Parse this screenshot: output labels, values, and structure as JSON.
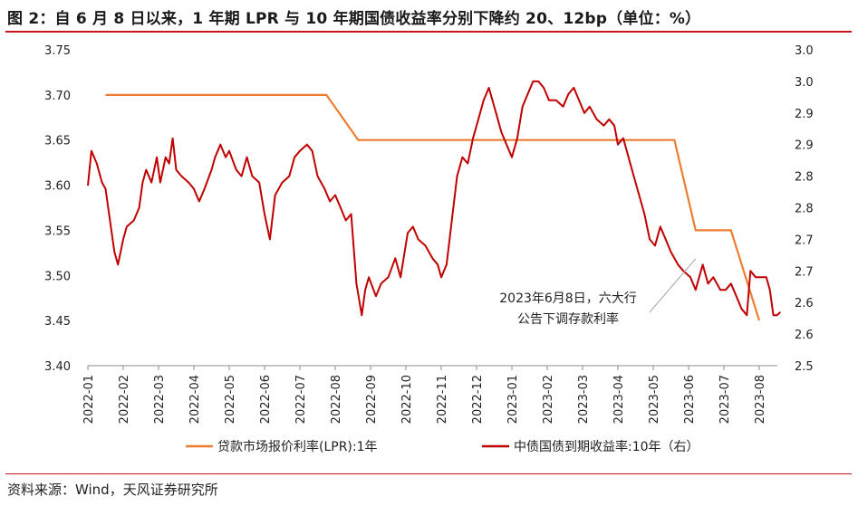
{
  "title": "图 2：自 6 月 8 日以来，1 年期 LPR 与 10 年期国债收益率分别下降约 20、12bp（单位：%）",
  "source": "资料来源：Wind，天风证券研究所",
  "colors": {
    "lpr": "#ed7d31",
    "bond": "#c00000",
    "title_rule": "#c5161d",
    "annotation_line": "#a6a6a6"
  },
  "chart_data": {
    "type": "line",
    "x_categories": [
      "2022-01",
      "2022-02",
      "2022-03",
      "2022-04",
      "2022-05",
      "2022-06",
      "2022-07",
      "2022-08",
      "2022-09",
      "2022-10",
      "2022-11",
      "2022-12",
      "2023-01",
      "2023-02",
      "2023-03",
      "2023-04",
      "2023-05",
      "2023-06",
      "2023-07",
      "2023-08"
    ],
    "y_left": {
      "min": 3.4,
      "max": 3.75,
      "ticks": [
        "3.40",
        "3.45",
        "3.50",
        "3.55",
        "3.60",
        "3.65",
        "3.70",
        "3.75"
      ]
    },
    "y_right": {
      "min": 2.5,
      "max": 3.0,
      "ticks": [
        "2.5",
        "2.6",
        "2.6",
        "2.7",
        "2.7",
        "2.8",
        "2.8",
        "2.9",
        "2.9",
        "3.0",
        "3.0"
      ]
    },
    "legend_placement": "bottom",
    "series": [
      {
        "name": "贷款市场报价利率(LPR):1年",
        "axis": "left",
        "points": [
          [
            0.5,
            3.7
          ],
          [
            6.75,
            3.7
          ],
          [
            7.65,
            3.65
          ],
          [
            16.6,
            3.65
          ],
          [
            17.2,
            3.55
          ],
          [
            18.2,
            3.55
          ],
          [
            19.0,
            3.45
          ]
        ]
      },
      {
        "name": "中债国债到期收益率:10年（右）",
        "axis": "right",
        "points": [
          [
            0.0,
            2.785
          ],
          [
            0.1,
            2.84
          ],
          [
            0.25,
            2.82
          ],
          [
            0.4,
            2.79
          ],
          [
            0.5,
            2.78
          ],
          [
            0.6,
            2.74
          ],
          [
            0.75,
            2.68
          ],
          [
            0.85,
            2.66
          ],
          [
            1.0,
            2.7
          ],
          [
            1.1,
            2.72
          ],
          [
            1.3,
            2.73
          ],
          [
            1.45,
            2.75
          ],
          [
            1.55,
            2.79
          ],
          [
            1.65,
            2.81
          ],
          [
            1.8,
            2.79
          ],
          [
            1.95,
            2.83
          ],
          [
            2.05,
            2.79
          ],
          [
            2.2,
            2.83
          ],
          [
            2.3,
            2.82
          ],
          [
            2.4,
            2.86
          ],
          [
            2.5,
            2.81
          ],
          [
            2.65,
            2.8
          ],
          [
            2.85,
            2.79
          ],
          [
            3.0,
            2.78
          ],
          [
            3.15,
            2.76
          ],
          [
            3.3,
            2.78
          ],
          [
            3.5,
            2.81
          ],
          [
            3.6,
            2.83
          ],
          [
            3.75,
            2.85
          ],
          [
            3.9,
            2.83
          ],
          [
            4.0,
            2.84
          ],
          [
            4.2,
            2.81
          ],
          [
            4.35,
            2.8
          ],
          [
            4.5,
            2.83
          ],
          [
            4.65,
            2.8
          ],
          [
            4.85,
            2.79
          ],
          [
            5.0,
            2.74
          ],
          [
            5.15,
            2.7
          ],
          [
            5.3,
            2.77
          ],
          [
            5.5,
            2.79
          ],
          [
            5.7,
            2.8
          ],
          [
            5.85,
            2.83
          ],
          [
            6.0,
            2.84
          ],
          [
            6.2,
            2.85
          ],
          [
            6.35,
            2.84
          ],
          [
            6.5,
            2.8
          ],
          [
            6.7,
            2.78
          ],
          [
            6.85,
            2.76
          ],
          [
            7.0,
            2.77
          ],
          [
            7.15,
            2.75
          ],
          [
            7.3,
            2.73
          ],
          [
            7.45,
            2.74
          ],
          [
            7.6,
            2.63
          ],
          [
            7.75,
            2.58
          ],
          [
            7.85,
            2.62
          ],
          [
            7.95,
            2.64
          ],
          [
            8.15,
            2.61
          ],
          [
            8.3,
            2.63
          ],
          [
            8.5,
            2.64
          ],
          [
            8.7,
            2.67
          ],
          [
            8.85,
            2.64
          ],
          [
            9.05,
            2.71
          ],
          [
            9.2,
            2.72
          ],
          [
            9.35,
            2.7
          ],
          [
            9.55,
            2.69
          ],
          [
            9.75,
            2.67
          ],
          [
            9.9,
            2.66
          ],
          [
            10.0,
            2.64
          ],
          [
            10.15,
            2.66
          ],
          [
            10.3,
            2.73
          ],
          [
            10.45,
            2.8
          ],
          [
            10.6,
            2.83
          ],
          [
            10.75,
            2.82
          ],
          [
            10.9,
            2.86
          ],
          [
            11.05,
            2.89
          ],
          [
            11.2,
            2.92
          ],
          [
            11.35,
            2.94
          ],
          [
            11.55,
            2.9
          ],
          [
            11.7,
            2.87
          ],
          [
            11.85,
            2.85
          ],
          [
            12.0,
            2.83
          ],
          [
            12.15,
            2.86
          ],
          [
            12.3,
            2.91
          ],
          [
            12.45,
            2.93
          ],
          [
            12.6,
            2.95
          ],
          [
            12.75,
            2.95
          ],
          [
            12.9,
            2.94
          ],
          [
            13.05,
            2.92
          ],
          [
            13.25,
            2.92
          ],
          [
            13.45,
            2.91
          ],
          [
            13.6,
            2.93
          ],
          [
            13.75,
            2.94
          ],
          [
            13.9,
            2.92
          ],
          [
            14.05,
            2.9
          ],
          [
            14.2,
            2.91
          ],
          [
            14.4,
            2.89
          ],
          [
            14.6,
            2.88
          ],
          [
            14.75,
            2.89
          ],
          [
            14.9,
            2.88
          ],
          [
            15.0,
            2.85
          ],
          [
            15.15,
            2.86
          ],
          [
            15.3,
            2.83
          ],
          [
            15.45,
            2.8
          ],
          [
            15.6,
            2.77
          ],
          [
            15.75,
            2.74
          ],
          [
            15.9,
            2.7
          ],
          [
            16.05,
            2.69
          ],
          [
            16.2,
            2.72
          ],
          [
            16.35,
            2.7
          ],
          [
            16.5,
            2.68
          ],
          [
            16.7,
            2.66
          ],
          [
            16.85,
            2.65
          ],
          [
            17.05,
            2.64
          ],
          [
            17.2,
            2.62
          ],
          [
            17.4,
            2.66
          ],
          [
            17.55,
            2.63
          ],
          [
            17.7,
            2.64
          ],
          [
            17.9,
            2.62
          ],
          [
            18.05,
            2.62
          ],
          [
            18.2,
            2.63
          ],
          [
            18.35,
            2.61
          ],
          [
            18.5,
            2.59
          ],
          [
            18.65,
            2.58
          ],
          [
            18.75,
            2.65
          ],
          [
            18.9,
            2.64
          ],
          [
            19.05,
            2.64
          ],
          [
            19.2,
            2.64
          ],
          [
            19.3,
            2.62
          ],
          [
            19.4,
            2.58
          ],
          [
            19.5,
            2.58
          ],
          [
            19.6,
            2.585
          ]
        ]
      }
    ],
    "annotation": {
      "text_line1": "2023年6月8日，六大行",
      "text_line2": "公告下调存款利率",
      "x": 17.2,
      "y_right": 2.675
    }
  }
}
